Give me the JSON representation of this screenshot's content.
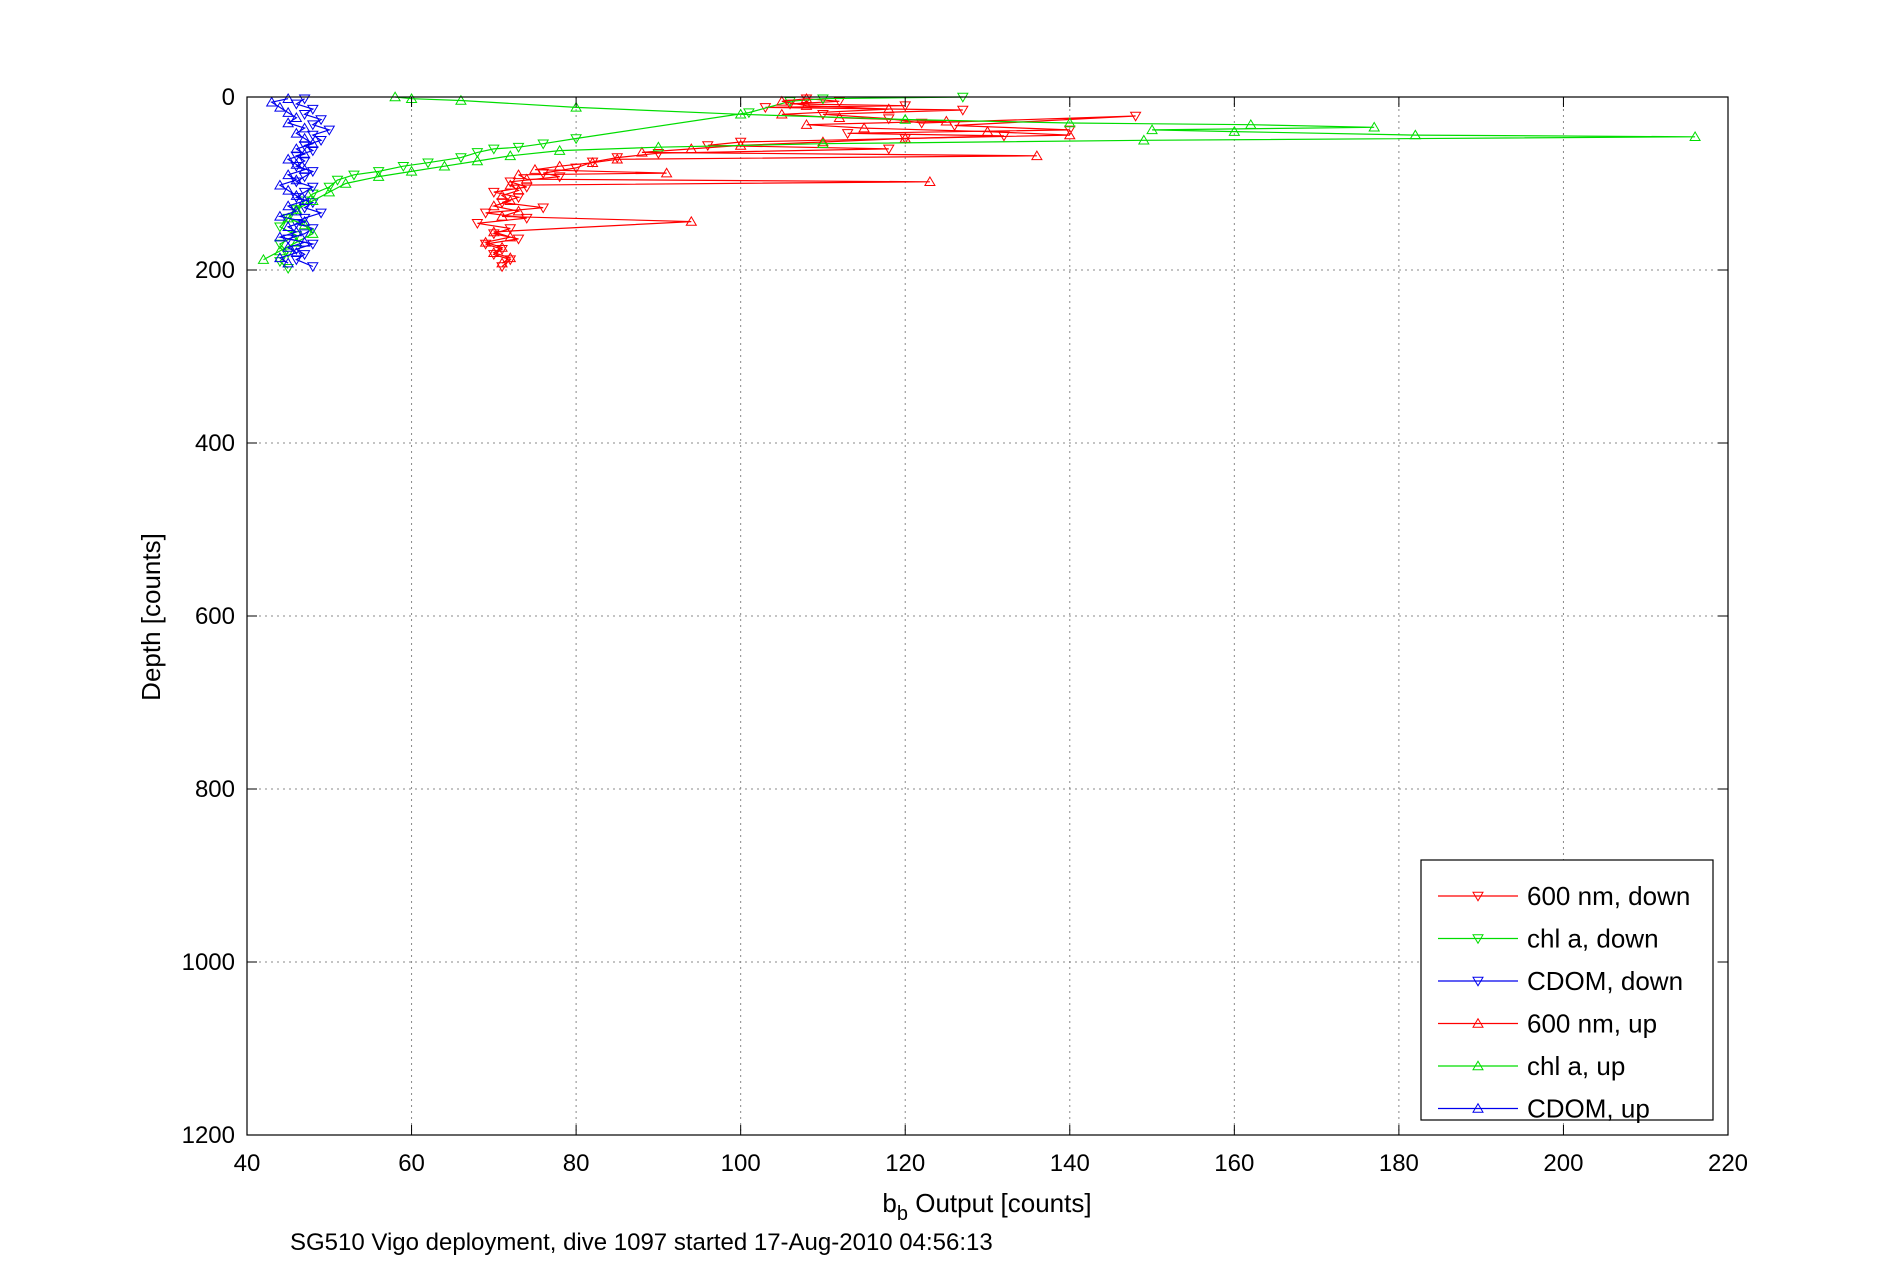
{
  "chart_data": {
    "type": "line",
    "xlabel_base": "b",
    "xlabel_sub": "b",
    "xlabel_rest": " Output [counts]",
    "ylabel": "Depth [counts]",
    "caption": "SG510 Vigo deployment, dive 1097 started 17-Aug-2010 04:56:13",
    "xlim": [
      40,
      220
    ],
    "ylim": [
      0,
      1200
    ],
    "y_reversed": true,
    "grid": true,
    "legend_position": "bottom-right",
    "x_ticks": [
      "40",
      "60",
      "80",
      "100",
      "120",
      "140",
      "160",
      "180",
      "200",
      "220"
    ],
    "y_ticks": [
      "0",
      "200",
      "400",
      "600",
      "800",
      "1000",
      "1200"
    ],
    "series": [
      {
        "name": "600 nm, down",
        "color": "#ff0000",
        "marker": "triangle-down",
        "points": [
          [
            108,
            2
          ],
          [
            112,
            5
          ],
          [
            106,
            8
          ],
          [
            120,
            10
          ],
          [
            103,
            12
          ],
          [
            127,
            15
          ],
          [
            110,
            20
          ],
          [
            118,
            25
          ],
          [
            122,
            30
          ],
          [
            148,
            22
          ],
          [
            126,
            33
          ],
          [
            140,
            38
          ],
          [
            113,
            42
          ],
          [
            132,
            45
          ],
          [
            120,
            48
          ],
          [
            100,
            52
          ],
          [
            96,
            56
          ],
          [
            118,
            60
          ],
          [
            90,
            65
          ],
          [
            85,
            70
          ],
          [
            82,
            75
          ],
          [
            80,
            82
          ],
          [
            76,
            88
          ],
          [
            78,
            92
          ],
          [
            72,
            98
          ],
          [
            74,
            104
          ],
          [
            70,
            110
          ],
          [
            73,
            116
          ],
          [
            71,
            122
          ],
          [
            76,
            128
          ],
          [
            69,
            134
          ],
          [
            74,
            140
          ],
          [
            68,
            146
          ],
          [
            72,
            152
          ],
          [
            70,
            158
          ],
          [
            73,
            164
          ],
          [
            69,
            170
          ],
          [
            71,
            176
          ],
          [
            70,
            182
          ],
          [
            72,
            188
          ],
          [
            71,
            196
          ]
        ]
      },
      {
        "name": "chl a, down",
        "color": "#00dd00",
        "marker": "triangle-down",
        "points": [
          [
            127,
            0
          ],
          [
            110,
            2
          ],
          [
            106,
            5
          ],
          [
            101,
            18
          ],
          [
            80,
            48
          ],
          [
            76,
            54
          ],
          [
            73,
            58
          ],
          [
            70,
            60
          ],
          [
            68,
            64
          ],
          [
            66,
            70
          ],
          [
            62,
            76
          ],
          [
            59,
            80
          ],
          [
            56,
            86
          ],
          [
            53,
            90
          ],
          [
            51,
            96
          ],
          [
            50,
            104
          ],
          [
            48,
            112
          ],
          [
            47,
            120
          ],
          [
            46,
            130
          ],
          [
            45,
            140
          ],
          [
            44,
            150
          ],
          [
            46,
            160
          ],
          [
            44,
            170
          ],
          [
            45,
            180
          ],
          [
            44,
            190
          ],
          [
            45,
            198
          ]
        ]
      },
      {
        "name": "CDOM, down",
        "color": "#0000ee",
        "marker": "triangle-down",
        "points": [
          [
            47,
            2
          ],
          [
            46,
            8
          ],
          [
            48,
            14
          ],
          [
            47,
            20
          ],
          [
            49,
            26
          ],
          [
            48,
            32
          ],
          [
            50,
            38
          ],
          [
            48,
            44
          ],
          [
            49,
            50
          ],
          [
            47,
            56
          ],
          [
            48,
            62
          ],
          [
            46,
            68
          ],
          [
            47,
            74
          ],
          [
            46,
            80
          ],
          [
            48,
            86
          ],
          [
            47,
            92
          ],
          [
            46,
            98
          ],
          [
            48,
            104
          ],
          [
            47,
            110
          ],
          [
            46,
            116
          ],
          [
            48,
            122
          ],
          [
            47,
            128
          ],
          [
            49,
            134
          ],
          [
            47,
            140
          ],
          [
            46,
            146
          ],
          [
            48,
            152
          ],
          [
            47,
            158
          ],
          [
            45,
            164
          ],
          [
            48,
            170
          ],
          [
            46,
            176
          ],
          [
            47,
            182
          ],
          [
            46,
            188
          ],
          [
            48,
            196
          ]
        ]
      },
      {
        "name": "600 nm, up",
        "color": "#ff0000",
        "marker": "triangle-up",
        "points": [
          [
            71,
            192
          ],
          [
            72,
            186
          ],
          [
            70,
            180
          ],
          [
            71,
            174
          ],
          [
            69,
            168
          ],
          [
            72,
            162
          ],
          [
            70,
            156
          ],
          [
            94,
            144
          ],
          [
            71,
            138
          ],
          [
            73,
            132
          ],
          [
            70,
            126
          ],
          [
            72,
            120
          ],
          [
            71,
            114
          ],
          [
            73,
            108
          ],
          [
            72,
            102
          ],
          [
            123,
            98
          ],
          [
            74,
            95
          ],
          [
            73,
            90
          ],
          [
            91,
            88
          ],
          [
            75,
            84
          ],
          [
            78,
            80
          ],
          [
            82,
            76
          ],
          [
            85,
            72
          ],
          [
            136,
            68
          ],
          [
            88,
            64
          ],
          [
            94,
            60
          ],
          [
            100,
            56
          ],
          [
            110,
            52
          ],
          [
            120,
            48
          ],
          [
            140,
            44
          ],
          [
            130,
            40
          ],
          [
            115,
            36
          ],
          [
            108,
            32
          ],
          [
            125,
            28
          ],
          [
            112,
            24
          ],
          [
            105,
            20
          ],
          [
            118,
            14
          ],
          [
            108,
            10
          ],
          [
            105,
            5
          ],
          [
            108,
            2
          ]
        ]
      },
      {
        "name": "chl a, up",
        "color": "#00dd00",
        "marker": "triangle-up",
        "points": [
          [
            42,
            188
          ],
          [
            44,
            178
          ],
          [
            46,
            168
          ],
          [
            48,
            158
          ],
          [
            47,
            148
          ],
          [
            45,
            140
          ],
          [
            46,
            130
          ],
          [
            48,
            120
          ],
          [
            50,
            110
          ],
          [
            52,
            100
          ],
          [
            56,
            92
          ],
          [
            60,
            86
          ],
          [
            64,
            80
          ],
          [
            68,
            74
          ],
          [
            72,
            68
          ],
          [
            78,
            62
          ],
          [
            90,
            58
          ],
          [
            110,
            54
          ],
          [
            149,
            50
          ],
          [
            216,
            46
          ],
          [
            182,
            44
          ],
          [
            160,
            40
          ],
          [
            150,
            38
          ],
          [
            177,
            35
          ],
          [
            162,
            32
          ],
          [
            140,
            30
          ],
          [
            120,
            26
          ],
          [
            100,
            20
          ],
          [
            80,
            12
          ],
          [
            66,
            4
          ],
          [
            60,
            2
          ],
          [
            58,
            0
          ]
        ]
      },
      {
        "name": "CDOM, up",
        "color": "#0000ee",
        "marker": "triangle-up",
        "points": [
          [
            45,
            192
          ],
          [
            44,
            186
          ],
          [
            46,
            180
          ],
          [
            45,
            174
          ],
          [
            47,
            168
          ],
          [
            44,
            162
          ],
          [
            46,
            156
          ],
          [
            45,
            150
          ],
          [
            47,
            144
          ],
          [
            44,
            138
          ],
          [
            46,
            132
          ],
          [
            45,
            126
          ],
          [
            47,
            120
          ],
          [
            46,
            114
          ],
          [
            45,
            108
          ],
          [
            44,
            102
          ],
          [
            46,
            96
          ],
          [
            45,
            90
          ],
          [
            47,
            84
          ],
          [
            46,
            78
          ],
          [
            45,
            72
          ],
          [
            47,
            66
          ],
          [
            46,
            60
          ],
          [
            48,
            54
          ],
          [
            47,
            48
          ],
          [
            46,
            42
          ],
          [
            47,
            36
          ],
          [
            45,
            30
          ],
          [
            46,
            24
          ],
          [
            45,
            18
          ],
          [
            44,
            12
          ],
          [
            43,
            6
          ],
          [
            45,
            2
          ]
        ]
      }
    ]
  }
}
